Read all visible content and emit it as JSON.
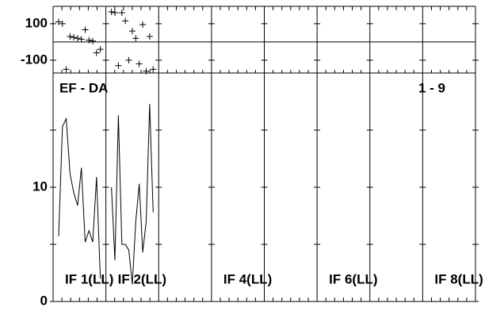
{
  "chart_data": {
    "type": "line",
    "annotations": [
      "EF - DA",
      "1 - 9"
    ],
    "panels": [
      {
        "name": "IF 1(LL)",
        "amplitude": [
          5.7,
          15.3,
          16,
          11.2,
          9.5,
          8.4,
          11.7,
          5.2,
          6.2,
          5.2,
          10.9,
          2
        ],
        "phase": [
          110,
          100,
          -150,
          30,
          25,
          20,
          15,
          67,
          10,
          5,
          -60,
          -40
        ]
      },
      {
        "name": "IF 2(LL)",
        "amplitude": [
          10,
          3.6,
          16.3,
          5,
          5,
          4.5,
          1.5,
          7,
          10.3,
          4.3,
          7,
          17.3,
          7.8
        ],
        "phase": [
          165,
          160,
          -130,
          160,
          115,
          -100,
          60,
          20,
          -120,
          95,
          -160,
          30,
          -150
        ]
      },
      {
        "name": null,
        "amplitude": [],
        "phase": []
      },
      {
        "name": "IF 4(LL)",
        "amplitude": [],
        "phase": []
      },
      {
        "name": null,
        "amplitude": [],
        "phase": []
      },
      {
        "name": "IF 6(LL)",
        "amplitude": [],
        "phase": []
      },
      {
        "name": null,
        "amplitude": [],
        "phase": []
      },
      {
        "name": "IF 8(LL)",
        "amplitude": [],
        "phase": []
      }
    ],
    "ylim": [
      0,
      20
    ],
    "yticks": [
      0,
      10
    ],
    "y_minor_ticks": [
      5,
      15
    ],
    "phase_ylim": [
      -170,
      195
    ],
    "phase_yticks": [
      -100,
      100
    ]
  }
}
